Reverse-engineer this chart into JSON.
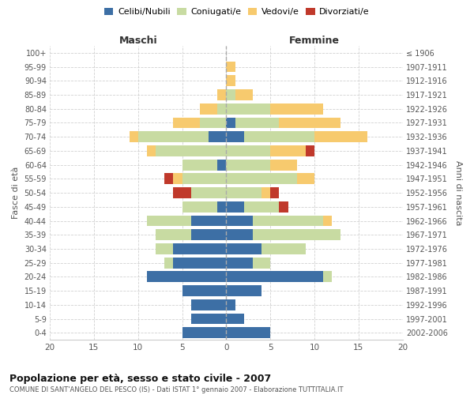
{
  "age_groups": [
    "100+",
    "95-99",
    "90-94",
    "85-89",
    "80-84",
    "75-79",
    "70-74",
    "65-69",
    "60-64",
    "55-59",
    "50-54",
    "45-49",
    "40-44",
    "35-39",
    "30-34",
    "25-29",
    "20-24",
    "15-19",
    "10-14",
    "5-9",
    "0-4"
  ],
  "birth_years": [
    "≤ 1906",
    "1907-1911",
    "1912-1916",
    "1917-1921",
    "1922-1926",
    "1927-1931",
    "1932-1936",
    "1937-1941",
    "1942-1946",
    "1947-1951",
    "1952-1956",
    "1957-1961",
    "1962-1966",
    "1967-1971",
    "1972-1976",
    "1977-1981",
    "1982-1986",
    "1987-1991",
    "1992-1996",
    "1997-2001",
    "2002-2006"
  ],
  "males": {
    "celibi": [
      0,
      0,
      0,
      0,
      0,
      0,
      2,
      0,
      1,
      0,
      0,
      1,
      4,
      4,
      6,
      6,
      9,
      5,
      4,
      4,
      5
    ],
    "coniugati": [
      0,
      0,
      0,
      0,
      1,
      3,
      8,
      8,
      4,
      5,
      4,
      4,
      5,
      4,
      2,
      1,
      0,
      0,
      0,
      0,
      0
    ],
    "vedovi": [
      0,
      0,
      0,
      1,
      2,
      3,
      1,
      1,
      0,
      1,
      0,
      0,
      0,
      0,
      0,
      0,
      0,
      0,
      0,
      0,
      0
    ],
    "divorziati": [
      0,
      0,
      0,
      0,
      0,
      0,
      0,
      0,
      0,
      1,
      2,
      0,
      0,
      0,
      0,
      0,
      0,
      0,
      0,
      0,
      0
    ]
  },
  "females": {
    "nubili": [
      0,
      0,
      0,
      0,
      0,
      1,
      2,
      0,
      0,
      0,
      0,
      2,
      3,
      3,
      4,
      3,
      11,
      4,
      1,
      2,
      5
    ],
    "coniugate": [
      0,
      0,
      0,
      1,
      5,
      5,
      8,
      5,
      5,
      8,
      4,
      4,
      8,
      10,
      5,
      2,
      1,
      0,
      0,
      0,
      0
    ],
    "vedove": [
      0,
      1,
      1,
      2,
      6,
      7,
      6,
      4,
      3,
      2,
      1,
      0,
      1,
      0,
      0,
      0,
      0,
      0,
      0,
      0,
      0
    ],
    "divorziate": [
      0,
      0,
      0,
      0,
      0,
      0,
      0,
      1,
      0,
      0,
      1,
      1,
      0,
      0,
      0,
      0,
      0,
      0,
      0,
      0,
      0
    ]
  },
  "colors": {
    "celibi_nubili": "#3d6fa5",
    "coniugati": "#c8dba2",
    "vedovi": "#f7ca6e",
    "divorziati": "#c0392b"
  },
  "xlim": 20,
  "title": "Popolazione per età, sesso e stato civile - 2007",
  "subtitle": "COMUNE DI SANT'ANGELO DEL PESCO (IS) - Dati ISTAT 1° gennaio 2007 - Elaborazione TUTTITALIA.IT",
  "ylabel": "Fasce di età",
  "ylabel2": "Anni di nascita",
  "xlabel_left": "Maschi",
  "xlabel_right": "Femmine",
  "bg_color": "#ffffff",
  "grid_color": "#cccccc"
}
